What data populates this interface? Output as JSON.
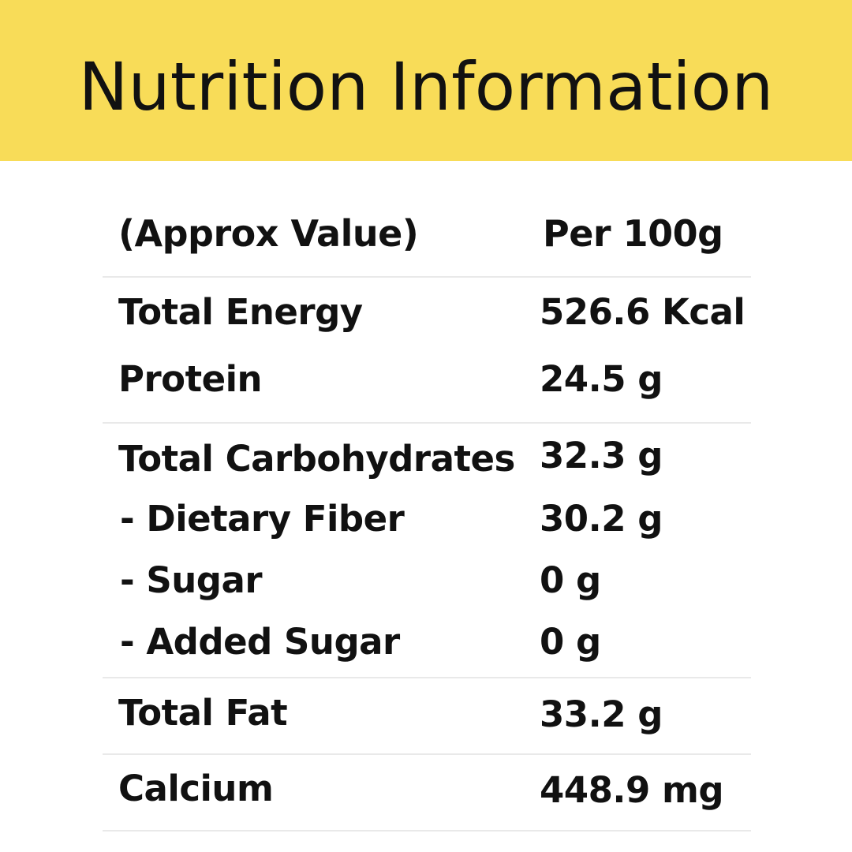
{
  "banner": {
    "title": "Nutrition Information",
    "color": "#f8dc58"
  },
  "table": {
    "header": {
      "label": "(Approx Value)",
      "value": "Per 100g"
    },
    "rows": [
      {
        "label": "Total Energy",
        "value": "526.6 Kcal"
      },
      {
        "label": "Protein",
        "value": "24.5 g"
      },
      {
        "label": "Total Carbohydrates",
        "value": "32.3 g"
      },
      {
        "label": "- Dietary Fiber",
        "value": "30.2 g"
      },
      {
        "label": "- Sugar",
        "value": "0 g"
      },
      {
        "label": "- Added Sugar",
        "value": "0 g"
      },
      {
        "label": "Total Fat",
        "value": "33.2 g"
      },
      {
        "label": "Calcium",
        "value": "448.9 mg"
      }
    ]
  }
}
